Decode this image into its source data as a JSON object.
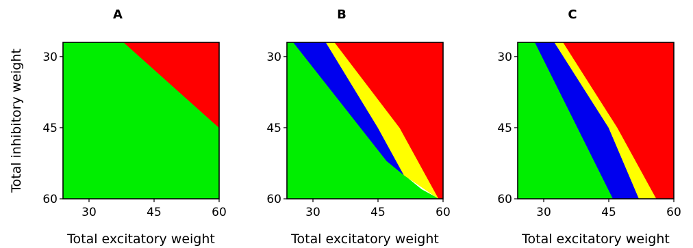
{
  "chart_data": {
    "type": "heatmap",
    "shared_ylabel": "Total inhibitory weight",
    "colors": {
      "green": "#00ee00",
      "blue": "#0000ee",
      "yellow": "#ffff00",
      "red": "#ff0000"
    },
    "panels": [
      {
        "title": "A",
        "xlabel": "Total excitatory weight",
        "xlim": [
          24,
          60
        ],
        "ylim": [
          60,
          27
        ],
        "xticks": [
          "30",
          "45",
          "60"
        ],
        "yticks": [
          "30",
          "45",
          "60"
        ],
        "regions": [
          {
            "color": "green",
            "polygon": [
              [
                24,
                27
              ],
              [
                38,
                27
              ],
              [
                60,
                45
              ],
              [
                60,
                60
              ],
              [
                24,
                60
              ]
            ]
          },
          {
            "color": "red",
            "polygon": [
              [
                38,
                27
              ],
              [
                60,
                27
              ],
              [
                60,
                45
              ]
            ]
          }
        ]
      },
      {
        "title": "B",
        "xlabel": "Total excitatory weight",
        "xlim": [
          24,
          60
        ],
        "ylim": [
          60,
          27
        ],
        "xticks": [
          "30",
          "45",
          "60"
        ],
        "yticks": [
          "30",
          "45",
          "60"
        ],
        "regions": [
          {
            "color": "green",
            "polygon": [
              [
                24,
                27
              ],
              [
                25.5,
                27
              ],
              [
                47,
                52
              ],
              [
                55,
                58
              ],
              [
                59,
                60
              ],
              [
                24,
                60
              ]
            ]
          },
          {
            "color": "blue",
            "polygon": [
              [
                25.5,
                27
              ],
              [
                33,
                27
              ],
              [
                45,
                45
              ],
              [
                51,
                55
              ],
              [
                47,
                52
              ]
            ]
          },
          {
            "color": "yellow",
            "polygon": [
              [
                33,
                27
              ],
              [
                35,
                27
              ],
              [
                50,
                45
              ],
              [
                56,
                55
              ],
              [
                59,
                60
              ],
              [
                51,
                55
              ],
              [
                45,
                45
              ]
            ]
          },
          {
            "color": "red",
            "polygon": [
              [
                35,
                27
              ],
              [
                60,
                27
              ],
              [
                60,
                60
              ],
              [
                59,
                60
              ],
              [
                56,
                55
              ],
              [
                50,
                45
              ]
            ]
          }
        ]
      },
      {
        "title": "C",
        "xlabel": "Total excitatory weight",
        "xlim": [
          24,
          60
        ],
        "ylim": [
          60,
          27
        ],
        "xticks": [
          "30",
          "45",
          "60"
        ],
        "yticks": [
          "30",
          "45",
          "60"
        ],
        "regions": [
          {
            "color": "green",
            "polygon": [
              [
                24,
                27
              ],
              [
                28,
                27
              ],
              [
                46,
                60
              ],
              [
                24,
                60
              ]
            ]
          },
          {
            "color": "blue",
            "polygon": [
              [
                28,
                27
              ],
              [
                32.5,
                27
              ],
              [
                45,
                45
              ],
              [
                52,
                60
              ],
              [
                46,
                60
              ]
            ]
          },
          {
            "color": "yellow",
            "polygon": [
              [
                32.5,
                27
              ],
              [
                34.5,
                27
              ],
              [
                47,
                45
              ],
              [
                53,
                55
              ],
              [
                56,
                60
              ],
              [
                52,
                60
              ],
              [
                45,
                45
              ]
            ]
          },
          {
            "color": "red",
            "polygon": [
              [
                34.5,
                27
              ],
              [
                60,
                27
              ],
              [
                60,
                60
              ],
              [
                56,
                60
              ],
              [
                53,
                55
              ],
              [
                47,
                45
              ]
            ]
          }
        ]
      }
    ]
  }
}
